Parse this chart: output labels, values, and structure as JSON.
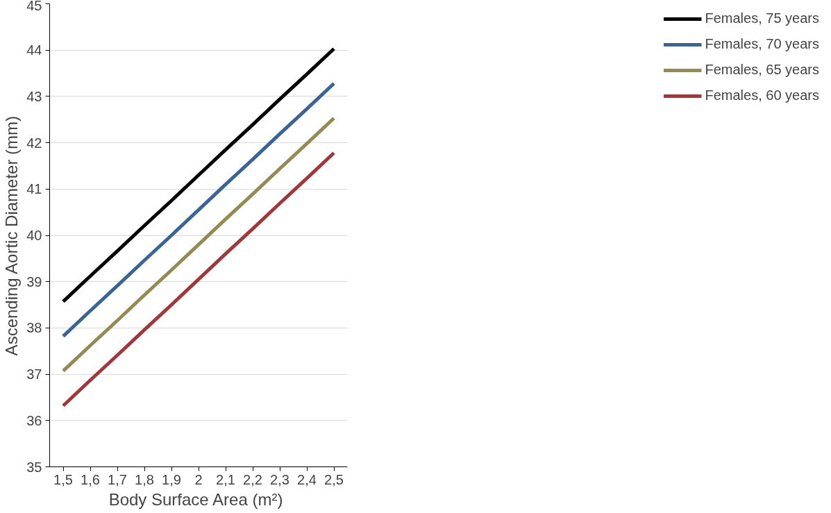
{
  "chart_data": {
    "type": "line",
    "xlabel": "Body Surface Area  (m²)",
    "ylabel": "Ascending Aortic Diameter (mm)",
    "categories": [
      "1,5",
      "1,6",
      "1,7",
      "1,8",
      "1,9",
      "2",
      "2,1",
      "2,2",
      "2,3",
      "2,4",
      "2,5"
    ],
    "ylim": [
      35,
      45
    ],
    "yticks": [
      35,
      36,
      37,
      38,
      39,
      40,
      41,
      42,
      43,
      44,
      45
    ],
    "grid": "y",
    "legend": "right",
    "marker": "none",
    "line_style": "solid",
    "series": [
      {
        "name": "Females, 75 years",
        "color": "#000000",
        "values": [
          38.57,
          39.12,
          39.66,
          40.21,
          40.75,
          41.3,
          41.85,
          42.39,
          42.94,
          43.48,
          44.03
        ]
      },
      {
        "name": "Females, 70 years",
        "color": "#3b6496",
        "values": [
          37.82,
          38.37,
          38.91,
          39.46,
          40.0,
          40.55,
          41.1,
          41.64,
          42.19,
          42.73,
          43.28
        ]
      },
      {
        "name": "Females, 65 years",
        "color": "#948a54",
        "values": [
          37.07,
          37.62,
          38.16,
          38.71,
          39.25,
          39.8,
          40.35,
          40.89,
          41.44,
          41.98,
          42.53
        ]
      },
      {
        "name": "Females, 60 years",
        "color": "#a0373a",
        "values": [
          36.32,
          36.87,
          37.41,
          37.96,
          38.5,
          39.05,
          39.6,
          40.14,
          40.69,
          41.23,
          41.78
        ]
      }
    ]
  }
}
